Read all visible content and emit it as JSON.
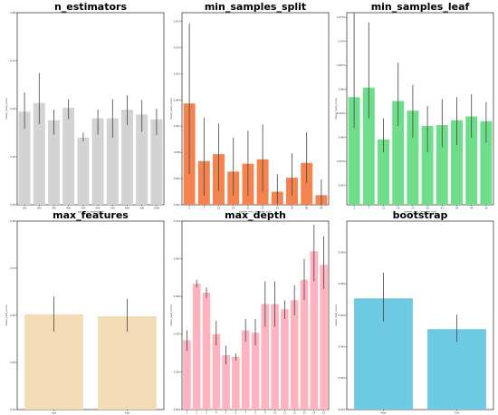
{
  "chart_data": [
    {
      "type": "bar",
      "title": "n_estimators",
      "xlabel": "param_n_estimators",
      "ylabel": "mean_test_score",
      "color": "#d3d3d3",
      "categories": [
        "100",
        "200",
        "300",
        "400",
        "500",
        "600",
        "700",
        "800",
        "900",
        "1000"
      ],
      "values": [
        0.9594,
        0.9612,
        0.9576,
        0.9602,
        0.954,
        0.958,
        0.958,
        0.9598,
        0.9588,
        0.9578
      ],
      "err_low": [
        0.9558,
        0.9568,
        0.9546,
        0.9578,
        0.9532,
        0.9546,
        0.954,
        0.9566,
        0.9552,
        0.9545
      ],
      "err_high": [
        0.9634,
        0.9674,
        0.9598,
        0.962,
        0.955,
        0.9598,
        0.962,
        0.9628,
        0.9618,
        0.96
      ],
      "ylim": [
        0.94,
        0.98
      ],
      "yticks": [
        0.94,
        0.95,
        0.96,
        0.97,
        0.98
      ],
      "yticklabels": [
        "0.94",
        "0.95",
        "0.96",
        "0.97",
        "0.98"
      ]
    },
    {
      "type": "bar",
      "title": "min_samples_split",
      "xlabel": "param_min_samples_split",
      "ylabel": "mean_test_score",
      "color": "#f4844f",
      "categories": [
        "2",
        "7",
        "12",
        "16",
        "21",
        "25",
        "30",
        "35",
        "40",
        "45"
      ],
      "values": [
        0.9636,
        0.957,
        0.9578,
        0.9558,
        0.9567,
        0.9572,
        0.9535,
        0.9551,
        0.9568,
        0.9531
      ],
      "err_low": [
        0.9555,
        0.953,
        0.9536,
        0.953,
        0.953,
        0.9535,
        0.9521,
        0.953,
        0.9545,
        0.952
      ],
      "err_high": [
        0.9728,
        0.962,
        0.9613,
        0.9597,
        0.9605,
        0.9612,
        0.9555,
        0.9579,
        0.9603,
        0.9549
      ],
      "ylim": [
        0.952,
        0.974
      ],
      "yticks": [
        0.952,
        0.955,
        0.958,
        0.961,
        0.964,
        0.967,
        0.97,
        0.973
      ],
      "yticklabels": [
        "0.952",
        "0.955",
        "0.958",
        "0.961",
        "0.964",
        "0.967",
        "0.970",
        "0.973"
      ]
    },
    {
      "type": "bar",
      "title": "min_samples_leaf",
      "xlabel": "param_min_samples_leaf",
      "ylabel": "mean_test_score",
      "color": "#6ede8a",
      "categories": [
        "1",
        "7",
        "12",
        "18",
        "23",
        "29",
        "34",
        "39",
        "44",
        "50"
      ],
      "values": [
        0.9642,
        0.9652,
        0.9598,
        0.9638,
        0.9628,
        0.9612,
        0.9613,
        0.9618,
        0.9622,
        0.9617
      ],
      "err_low": [
        0.961,
        0.962,
        0.9585,
        0.9612,
        0.96,
        0.9585,
        0.959,
        0.9592,
        0.96,
        0.9595
      ],
      "err_high": [
        0.9732,
        0.972,
        0.962,
        0.9678,
        0.9655,
        0.9633,
        0.964,
        0.9642,
        0.9645,
        0.9637
      ],
      "ylim": [
        0.953,
        0.973
      ],
      "yticks": [
        0.955,
        0.9575,
        0.96,
        0.9625,
        0.965,
        0.9675,
        0.97,
        0.9725
      ],
      "yticklabels": [
        "0.955",
        "0.9575",
        "0.960",
        "0.9625",
        "0.965",
        "0.9675",
        "0.970",
        "0.9725"
      ]
    },
    {
      "type": "bar",
      "title": "max_features",
      "xlabel": "param_max_features",
      "ylabel": "mean_test_score",
      "color": "#f3dcb5",
      "categories": [
        "sqrt",
        "log2"
      ],
      "values": [
        0.9602,
        0.9598
      ],
      "err_low": [
        0.9565,
        0.9565
      ],
      "err_high": [
        0.964,
        0.9635
      ],
      "ylim": [
        0.94,
        0.98
      ],
      "yticks": [
        0.94,
        0.95,
        0.96,
        0.97,
        0.98
      ],
      "yticklabels": [
        "0.94",
        "0.95",
        "0.96",
        "0.97",
        "0.98"
      ]
    },
    {
      "type": "bar",
      "title": "max_depth",
      "xlabel": "param_max_depth",
      "ylabel": "mean_test_score",
      "color": "#ffb3c1",
      "categories": [
        "1",
        "2",
        "3",
        "4",
        "5",
        "6",
        "7",
        "8",
        "9",
        "10",
        "11",
        "12",
        "13",
        "14",
        "15"
      ],
      "values": [
        0.9542,
        0.9617,
        0.9605,
        0.955,
        0.9522,
        0.952,
        0.9555,
        0.9552,
        0.959,
        0.959,
        0.9583,
        0.9595,
        0.9622,
        0.966,
        0.9642
      ],
      "err_low": [
        0.9528,
        0.9612,
        0.9598,
        0.9535,
        0.951,
        0.9515,
        0.954,
        0.9535,
        0.956,
        0.956,
        0.957,
        0.9575,
        0.9595,
        0.962,
        0.961
      ],
      "err_high": [
        0.9555,
        0.9622,
        0.9612,
        0.9568,
        0.9535,
        0.9524,
        0.957,
        0.957,
        0.962,
        0.962,
        0.9595,
        0.9615,
        0.965,
        0.9695,
        0.968
      ],
      "ylim": [
        0.945,
        0.97
      ],
      "yticks": [
        0.945,
        0.95,
        0.955,
        0.96,
        0.965,
        0.97
      ],
      "yticklabels": [
        "0.945",
        "0.950",
        "0.955",
        "0.960",
        "0.965",
        "0.970"
      ]
    },
    {
      "type": "bar",
      "title": "bootstrap",
      "xlabel": "param_bootstrap",
      "ylabel": "mean_test_score",
      "color": "#6ec9e3",
      "categories": [
        "False",
        "True"
      ],
      "values": [
        0.9627,
        0.9578
      ],
      "err_low": [
        0.959,
        0.9558
      ],
      "err_high": [
        0.9668,
        0.9601
      ],
      "ylim": [
        0.945,
        0.975
      ],
      "yticks": [
        0.945,
        0.95,
        0.955,
        0.96,
        0.965,
        0.97
      ],
      "yticklabels": [
        "0.945",
        "0.950",
        "0.955",
        "0.960",
        "0.965",
        "0.970"
      ]
    }
  ]
}
